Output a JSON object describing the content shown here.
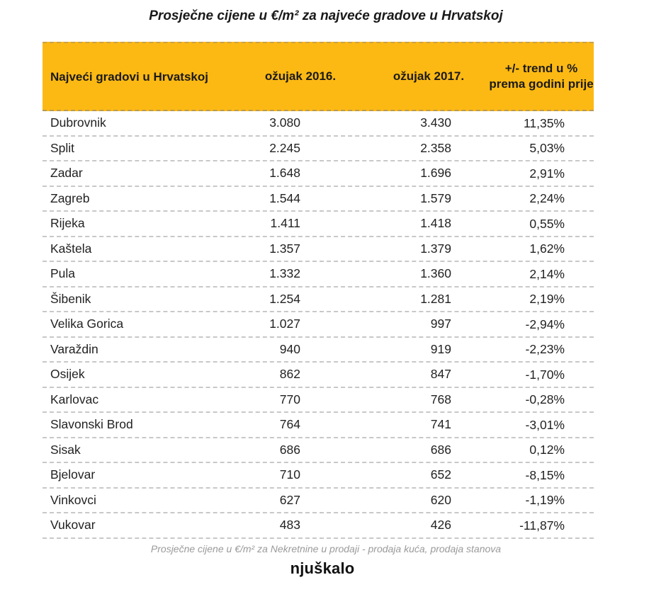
{
  "title": "Prosječne cijene u €/m² za najveće gradove u Hrvatskoj",
  "table": {
    "headers": {
      "city": "Najveći gradovi u Hrvatskoj",
      "y2016": "ožujak 2016.",
      "y2017": "ožujak 2017.",
      "trend": "+/- trend u % prema godini prije"
    },
    "rows": [
      {
        "city": "Dubrovnik",
        "y2016": "3.080",
        "y2017": "3.430",
        "trend": "11,35%"
      },
      {
        "city": "Split",
        "y2016": "2.245",
        "y2017": "2.358",
        "trend": "5,03%"
      },
      {
        "city": "Zadar",
        "y2016": "1.648",
        "y2017": "1.696",
        "trend": "2,91%"
      },
      {
        "city": "Zagreb",
        "y2016": "1.544",
        "y2017": "1.579",
        "trend": "2,24%"
      },
      {
        "city": "Rijeka",
        "y2016": "1.411",
        "y2017": "1.418",
        "trend": "0,55%"
      },
      {
        "city": "Kaštela",
        "y2016": "1.357",
        "y2017": "1.379",
        "trend": "1,62%"
      },
      {
        "city": "Pula",
        "y2016": "1.332",
        "y2017": "1.360",
        "trend": "2,14%"
      },
      {
        "city": "Šibenik",
        "y2016": "1.254",
        "y2017": "1.281",
        "trend": "2,19%"
      },
      {
        "city": "Velika Gorica",
        "y2016": "1.027",
        "y2017": "997",
        "trend": "-2,94%"
      },
      {
        "city": "Varaždin",
        "y2016": "940",
        "y2017": "919",
        "trend": "-2,23%"
      },
      {
        "city": "Osijek",
        "y2016": "862",
        "y2017": "847",
        "trend": "-1,70%"
      },
      {
        "city": "Karlovac",
        "y2016": "770",
        "y2017": "768",
        "trend": "-0,28%"
      },
      {
        "city": "Slavonski Brod",
        "y2016": "764",
        "y2017": "741",
        "trend": "-3,01%"
      },
      {
        "city": "Sisak",
        "y2016": "686",
        "y2017": "686",
        "trend": "0,12%"
      },
      {
        "city": "Bjelovar",
        "y2016": "710",
        "y2017": "652",
        "trend": "-8,15%"
      },
      {
        "city": "Vinkovci",
        "y2016": "627",
        "y2017": "620",
        "trend": "-1,19%"
      },
      {
        "city": "Vukovar",
        "y2016": "483",
        "y2017": "426",
        "trend": "-11,87%"
      }
    ]
  },
  "footnote": "Prosječne cijene u €/m² za Nekretnine u prodaji - prodaja kuća, prodaja stanova",
  "logo": "njuškalo",
  "colors": {
    "header_bg": "#fdb913",
    "footnote": "#9a9a9a"
  }
}
